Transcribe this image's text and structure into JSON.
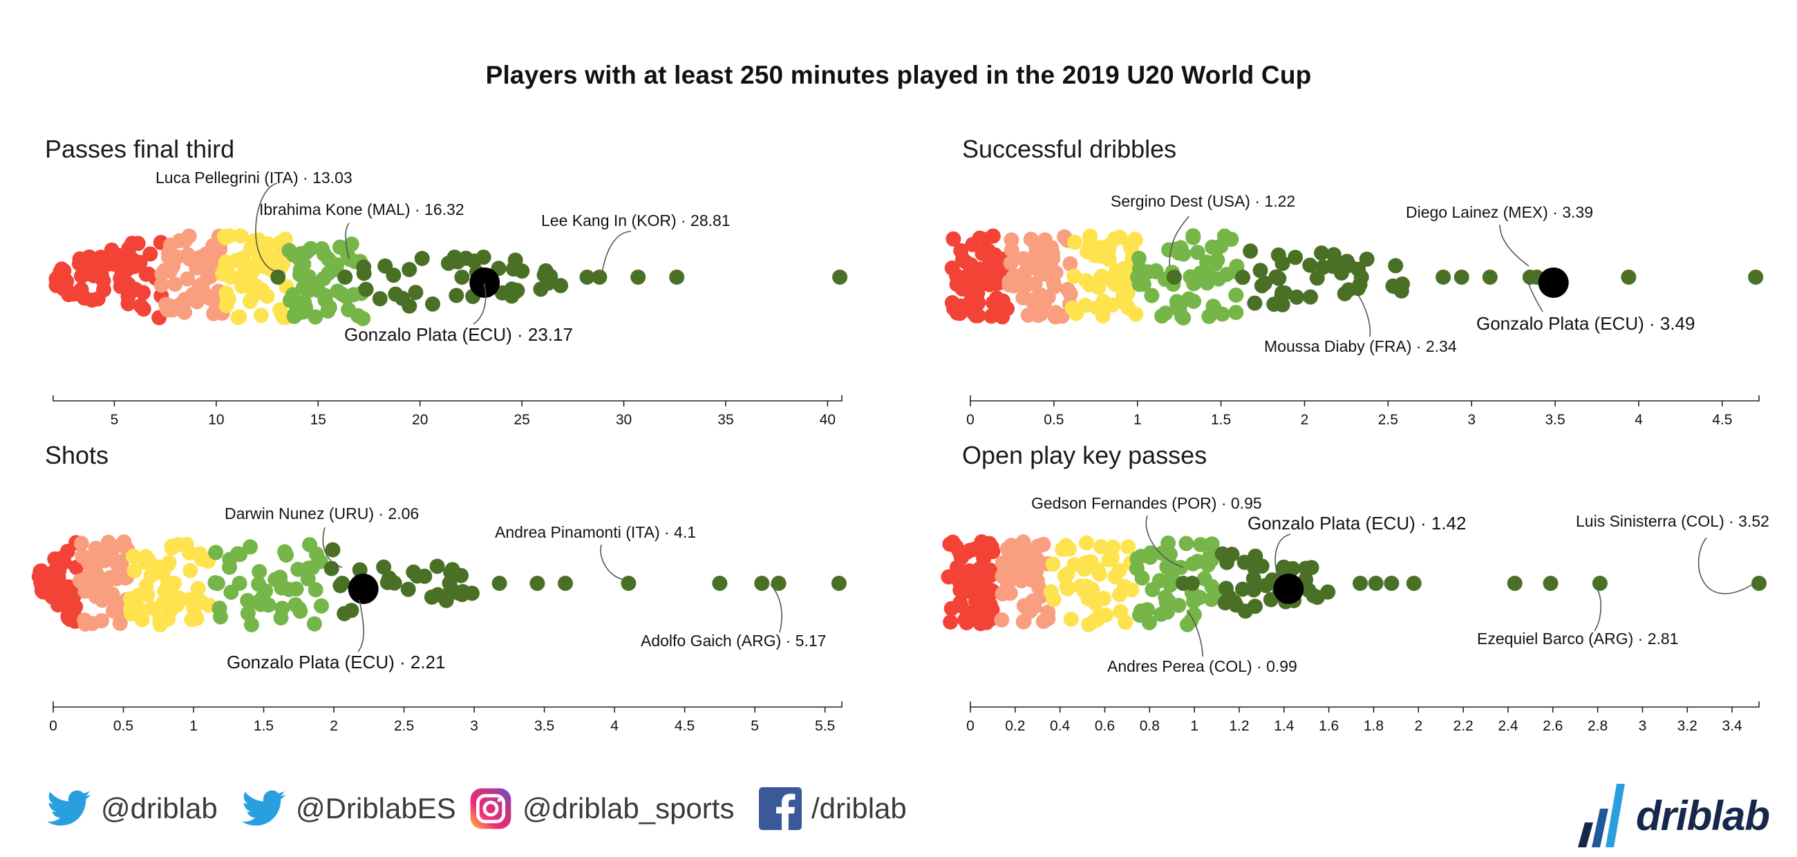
{
  "title": "Players with at least 250 minutes played in the 2019 U20 World Cup",
  "colors": {
    "red": "#f34336",
    "salmon": "#fa9e80",
    "yellow": "#fee34f",
    "lightgreen": "#76b649",
    "midgreen": "#5d9a3c",
    "darkgreen": "#4a7026",
    "highlight": "#000000"
  },
  "chart_data": [
    {
      "type": "scatter",
      "subtype": "beeswarm",
      "title": "Passes final third",
      "xlim": [
        2,
        40.7
      ],
      "ticks": [
        5,
        10,
        15,
        20,
        25,
        30,
        35,
        40
      ],
      "bands": [
        {
          "color": "red",
          "from": 2,
          "to": 7.3,
          "count": 70
        },
        {
          "color": "salmon",
          "from": 7.3,
          "to": 10.3,
          "count": 60
        },
        {
          "color": "yellow",
          "from": 10.3,
          "to": 13.5,
          "count": 55
        },
        {
          "color": "lightgreen",
          "from": 13.5,
          "to": 17.2,
          "count": 55
        },
        {
          "color": "darkgreen",
          "from": 17.2,
          "to": 27,
          "count": 40
        }
      ],
      "outliers": [
        28.2,
        30.7,
        32.6,
        40.6
      ],
      "highlight": {
        "value": 23.17
      },
      "annotations": [
        {
          "text": "Luca Pellegrini (ITA) · 13.03",
          "value": 13.03
        },
        {
          "text": "Ibrahima Kone (MAL) · 16.32",
          "value": 16.32
        },
        {
          "text": "Lee Kang In (KOR) · 28.81",
          "value": 28.81
        },
        {
          "text": "Gonzalo Plata (ECU) · 23.17",
          "value": 23.17
        }
      ]
    },
    {
      "type": "scatter",
      "subtype": "beeswarm",
      "title": "Successful dribbles",
      "xlim": [
        0,
        4.72
      ],
      "ticks": [
        0,
        0.5,
        1,
        1.5,
        2,
        2.5,
        3,
        3.5,
        4,
        4.5
      ],
      "bands": [
        {
          "color": "red",
          "from": -0.12,
          "to": 0.22,
          "count": 70
        },
        {
          "color": "salmon",
          "from": 0.22,
          "to": 0.6,
          "count": 55
        },
        {
          "color": "yellow",
          "from": 0.6,
          "to": 1.0,
          "count": 50
        },
        {
          "color": "lightgreen",
          "from": 1.0,
          "to": 1.6,
          "count": 55
        },
        {
          "color": "darkgreen",
          "from": 1.6,
          "to": 2.6,
          "count": 40
        }
      ],
      "outliers": [
        2.83,
        2.94,
        3.11,
        3.35,
        3.94,
        4.7
      ],
      "highlight": {
        "value": 3.49
      },
      "annotations": [
        {
          "text": "Sergino Dest (USA) · 1.22",
          "value": 1.22
        },
        {
          "text": "Diego Lainez (MEX) · 3.39",
          "value": 3.39
        },
        {
          "text": "Moussa Diaby (FRA) · 2.34",
          "value": 2.34
        },
        {
          "text": "Gonzalo Plata (ECU) · 3.49",
          "value": 3.49
        }
      ]
    },
    {
      "type": "scatter",
      "subtype": "beeswarm",
      "title": "Shots",
      "xlim": [
        0,
        5.62
      ],
      "ticks": [
        0,
        0.5,
        1,
        1.5,
        2,
        2.5,
        3,
        3.5,
        4,
        4.5,
        5,
        5.5
      ],
      "bands": [
        {
          "color": "red",
          "from": -0.1,
          "to": 0.17,
          "count": 60
        },
        {
          "color": "salmon",
          "from": 0.17,
          "to": 0.55,
          "count": 55
        },
        {
          "color": "yellow",
          "from": 0.55,
          "to": 1.15,
          "count": 55
        },
        {
          "color": "lightgreen",
          "from": 1.15,
          "to": 1.95,
          "count": 45
        },
        {
          "color": "darkgreen",
          "from": 1.95,
          "to": 3.0,
          "count": 30
        }
      ],
      "outliers": [
        3.18,
        3.45,
        3.65,
        4.75,
        5.05,
        5.6
      ],
      "highlight": {
        "value": 2.21
      },
      "annotations": [
        {
          "text": "Darwin Nunez (URU) · 2.06",
          "value": 2.06
        },
        {
          "text": "Andrea Pinamonti (ITA) · 4.1",
          "value": 4.1
        },
        {
          "text": "Adolfo Gaich (ARG) · 5.17",
          "value": 5.17
        },
        {
          "text": "Gonzalo Plata (ECU) · 2.21",
          "value": 2.21
        }
      ]
    },
    {
      "type": "scatter",
      "subtype": "beeswarm",
      "title": "Open play key passes",
      "xlim": [
        0,
        3.52
      ],
      "ticks": [
        0,
        0.2,
        0.4,
        0.6,
        0.8,
        1,
        1.2,
        1.4,
        1.6,
        1.8,
        2,
        2.2,
        2.4,
        2.6,
        2.8,
        3,
        3.2,
        3.4
      ],
      "bands": [
        {
          "color": "red",
          "from": -0.1,
          "to": 0.1,
          "count": 70
        },
        {
          "color": "salmon",
          "from": 0.13,
          "to": 0.35,
          "count": 45
        },
        {
          "color": "yellow",
          "from": 0.35,
          "to": 0.72,
          "count": 45
        },
        {
          "color": "lightgreen",
          "from": 0.72,
          "to": 1.1,
          "count": 50
        },
        {
          "color": "darkgreen",
          "from": 1.1,
          "to": 1.6,
          "count": 35
        }
      ],
      "outliers": [
        1.74,
        1.81,
        1.88,
        1.98,
        2.43,
        2.59
      ],
      "highlight": {
        "value": 1.42
      },
      "annotations": [
        {
          "text": "Gedson Fernandes (POR) · 0.95",
          "value": 0.95
        },
        {
          "text": "Gonzalo Plata (ECU) · 1.42",
          "value": 1.42
        },
        {
          "text": "Luis Sinisterra (COL) · 3.52",
          "value": 3.52
        },
        {
          "text": "Ezequiel Barco (ARG) · 2.81",
          "value": 2.81
        },
        {
          "text": "Andres Perea (COL) · 0.99",
          "value": 0.99
        }
      ]
    }
  ],
  "footer": {
    "social": [
      {
        "icon": "twitter-icon",
        "handle": "@driblab"
      },
      {
        "icon": "twitter-icon",
        "handle": "@DriblabES"
      },
      {
        "icon": "instagram-icon",
        "handle": "@driblab_sports"
      },
      {
        "icon": "facebook-icon",
        "handle": "/driblab"
      }
    ],
    "brand": "driblab"
  }
}
